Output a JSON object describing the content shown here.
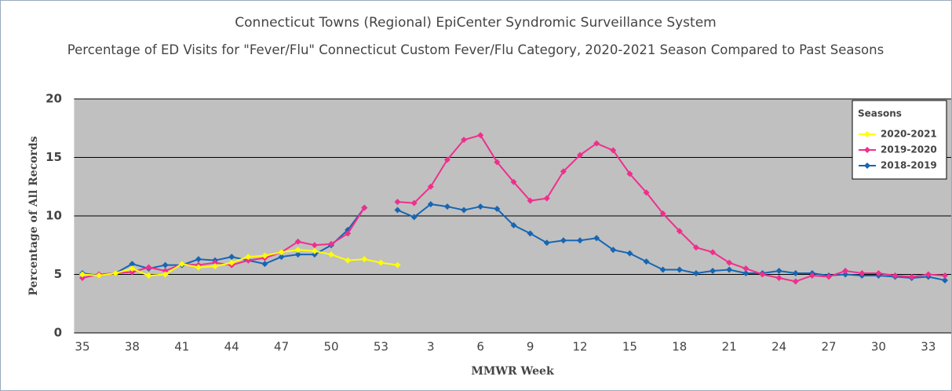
{
  "chart_data": {
    "type": "line",
    "title": "Connecticut Towns (Regional) EpiCenter Syndromic Surveillance System",
    "subtitle": "Percentage of ED Visits for \"Fever/Flu\" Connecticut Custom Fever/Flu Category, 2020-2021 Season Compared to Past Seasons",
    "x_label": "MMWR Week",
    "y_label": "Percentage of All Records",
    "legend_title": "Seasons",
    "legend_position": "upper right",
    "categories": [
      35,
      null,
      null,
      38,
      null,
      null,
      41,
      null,
      null,
      44,
      null,
      null,
      47,
      null,
      null,
      50,
      null,
      null,
      53,
      null,
      null,
      3,
      null,
      null,
      6,
      null,
      null,
      9,
      null,
      null,
      12,
      null,
      null,
      15,
      null,
      null,
      18,
      null,
      null,
      21,
      null,
      null,
      24,
      null,
      null,
      27,
      null,
      null,
      30,
      null,
      null,
      33,
      null
    ],
    "series": [
      {
        "name": "2020-2021",
        "color": "#ffff00",
        "values": [
          5.0,
          4.9,
          5.1,
          5.5,
          4.9,
          5.0,
          5.9,
          5.6,
          5.7,
          6.0,
          6.5,
          6.6,
          6.9,
          7.1,
          7.0,
          6.7,
          6.2,
          6.3,
          6.0,
          5.8,
          null,
          null,
          null,
          null,
          null,
          null,
          null,
          null,
          null,
          null,
          null,
          null,
          null,
          null,
          null,
          null,
          null,
          null,
          null,
          null,
          null,
          null,
          null,
          null,
          null,
          null,
          null,
          null,
          null,
          null,
          null,
          null,
          null
        ]
      },
      {
        "name": "2019-2020",
        "color": "#ef2f8d",
        "values": [
          4.7,
          5.0,
          5.1,
          5.2,
          5.6,
          5.3,
          5.9,
          5.8,
          6.0,
          5.8,
          6.2,
          6.4,
          6.9,
          7.8,
          7.5,
          7.6,
          8.5,
          10.7,
          null,
          11.2,
          11.1,
          12.5,
          14.8,
          16.5,
          16.9,
          14.6,
          12.9,
          11.3,
          11.5,
          13.8,
          15.2,
          16.2,
          15.6,
          13.6,
          12.0,
          10.2,
          8.7,
          7.3,
          6.9,
          6.0,
          5.5,
          5.0,
          4.7,
          4.4,
          4.9,
          4.8,
          5.3,
          5.1,
          5.1,
          4.9,
          4.8,
          5.0,
          4.9
        ]
      },
      {
        "name": "2018-2019",
        "color": "#1666b3",
        "values": [
          5.1,
          4.9,
          5.1,
          5.9,
          5.5,
          5.8,
          5.8,
          6.3,
          6.2,
          6.5,
          6.2,
          5.9,
          6.5,
          6.7,
          6.7,
          7.5,
          8.8,
          10.7,
          null,
          10.5,
          9.9,
          11.0,
          10.8,
          10.5,
          10.8,
          10.6,
          9.2,
          8.5,
          7.7,
          7.9,
          7.9,
          8.1,
          7.1,
          6.8,
          6.1,
          5.4,
          5.4,
          5.1,
          5.3,
          5.4,
          5.1,
          5.1,
          5.3,
          5.1,
          5.1,
          4.9,
          5.0,
          4.9,
          4.9,
          4.8,
          4.7,
          4.8,
          4.5
        ]
      }
    ],
    "ylim": [
      0,
      20
    ],
    "yticks": [
      0,
      5,
      10,
      15,
      20
    ],
    "grid": true,
    "plot_background": "#c0c0c0"
  }
}
